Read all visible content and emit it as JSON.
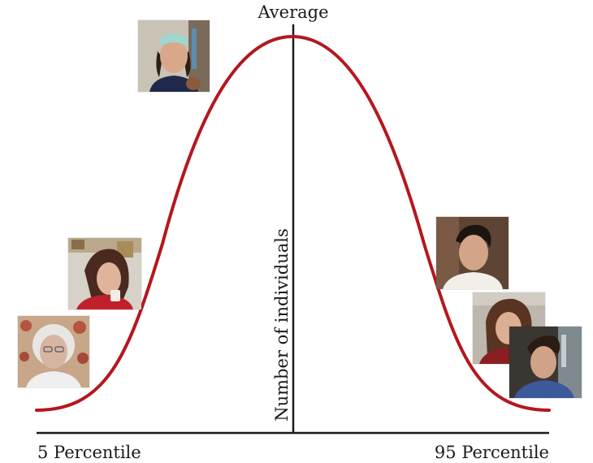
{
  "labels": {
    "top": "Average",
    "vertical_axis": "Number of individuals",
    "left_bottom": "5 Percentile",
    "right_bottom": "95 Percentile"
  },
  "colors": {
    "curve": "#b5171f",
    "axis": "#1a1a1a"
  },
  "photos": [
    {
      "id": "girl-headband",
      "icon": "portrait-photo"
    },
    {
      "id": "young-woman-eating",
      "icon": "portrait-photo"
    },
    {
      "id": "elderly-woman",
      "icon": "portrait-photo"
    },
    {
      "id": "young-man-dark-hair",
      "icon": "portrait-photo"
    },
    {
      "id": "woman-brown-hair",
      "icon": "portrait-photo"
    },
    {
      "id": "young-man-profile",
      "icon": "portrait-photo"
    }
  ]
}
